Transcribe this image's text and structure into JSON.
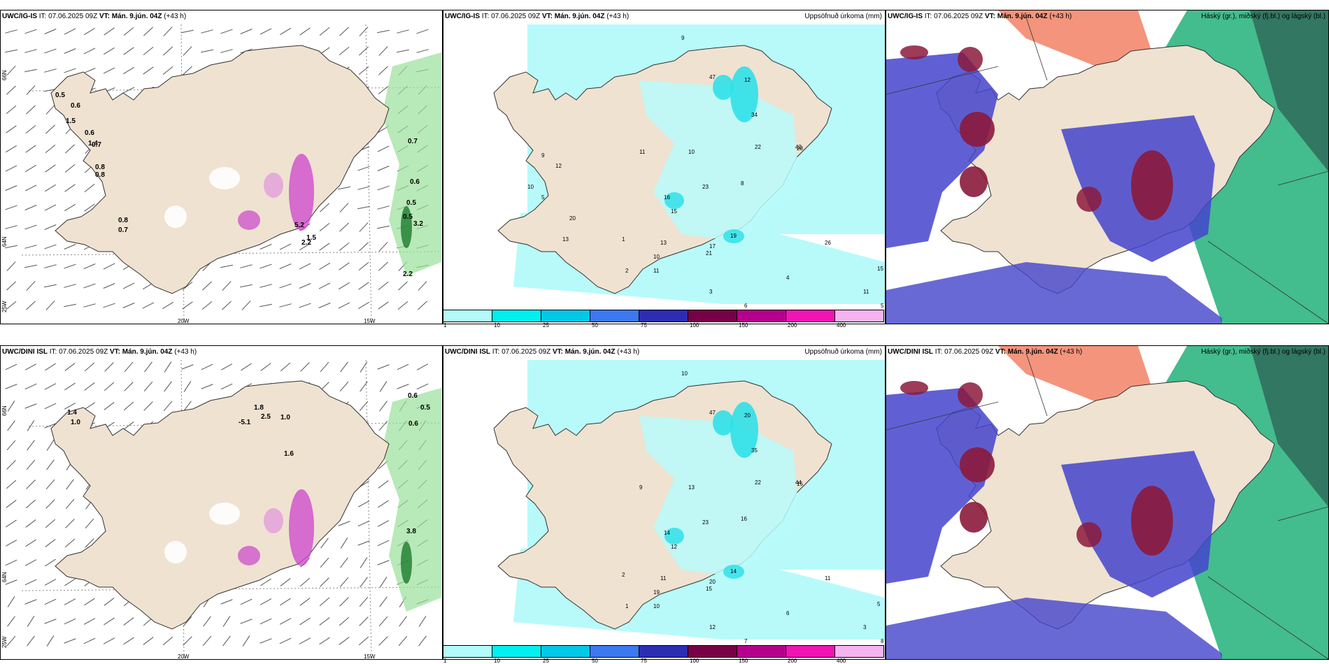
{
  "panels": {
    "top_left": {
      "model": "UWC/IG-IS",
      "it": "IT: 07.06.2025 09Z",
      "vt": "VT: Mán. 9.jún. 04Z",
      "lead": "(+43 h)",
      "right": ""
    },
    "top_mid": {
      "model": "UWC/IG-IS",
      "it": "IT: 07.06.2025 09Z",
      "vt": "VT: Mán. 9.jún. 04Z",
      "lead": "(+43 h)",
      "right": "Uppsöfnuð úrkoma (mm)"
    },
    "top_right": {
      "model": "UWC/IG-IS",
      "it": "IT: 07.06.2025 09Z",
      "vt": "VT: Mán. 9.jún. 04Z",
      "lead": "(+43 h)",
      "right": "Háský (gr.), miðský (fj.bl.) og lágský (bl.)"
    },
    "bot_left": {
      "model": "UWC/DINI ISL",
      "it": "IT: 07.06.2025 09Z",
      "vt": "VT: Mán. 9.jún. 04Z",
      "lead": "(+43 h)",
      "right": ""
    },
    "bot_mid": {
      "model": "UWC/DINI ISL",
      "it": "IT: 07.06.2025 09Z",
      "vt": "VT: Mán. 9.jún. 04Z",
      "lead": "(+43 h)",
      "right": "Uppsöfnuð úrkoma (mm)"
    },
    "bot_right": {
      "model": "UWC/DINI ISL",
      "it": "IT: 07.06.2025 09Z",
      "vt": "VT: Mán. 9.jún. 04Z",
      "lead": "(+43 h)",
      "right": "Háský (gr.), miðský (fj.bl.) og lágský (bl.)"
    }
  },
  "axis_labels": {
    "lon_20w": "20W",
    "lon_15w": "15W",
    "lat_66n": "66N",
    "lat_64n": "64N",
    "lon_25w": "25W"
  },
  "colorbar": {
    "ticks": [
      "1",
      "10",
      "25",
      "50",
      "75",
      "100",
      "150",
      "200",
      "400"
    ],
    "colors": [
      "#b3fbfb",
      "#00f0f0",
      "#00c8e6",
      "#3c78f0",
      "#2d2db4",
      "#780046",
      "#b4008c",
      "#f014b4",
      "#f5b4f0"
    ]
  },
  "colors": {
    "land": "#efe2d1",
    "precip_light": "#b8fafa",
    "precip_med": "#30e0e8",
    "low_cloud": "#4444cc",
    "mid_cloud": "#8b1a3c",
    "high_cloud": "#22b07a",
    "green_precip": "#9ae09a",
    "purple": "#cc44cc"
  },
  "map_values": {
    "top_left": [
      "0.5",
      "0.6",
      "1.5",
      "0.6",
      "0.7",
      "0.8",
      "0.8",
      "0.8",
      "0.7",
      "1.4",
      "0.7",
      "0.6",
      "0.5",
      "0.5",
      "3.2",
      "2.2",
      "5.2",
      "1.5",
      "2.2"
    ],
    "top_mid": [
      "9",
      "12",
      "47",
      "34",
      "22",
      "42",
      "28",
      "10",
      "11",
      "15",
      "8",
      "23",
      "16",
      "13",
      "17",
      "10",
      "11",
      "21",
      "19",
      "26",
      "15",
      "11",
      "5",
      "4",
      "6",
      "3",
      "2",
      "1",
      "13",
      "20",
      "12",
      "9",
      "10",
      "5"
    ],
    "bot_left": [
      "1.4",
      "1.0",
      "0.6",
      "0.5",
      "0.6",
      "3.8",
      "1.8",
      "-5.1",
      "2.5",
      "1.0",
      "1.6"
    ],
    "bot_mid": [
      "10",
      "20",
      "47",
      "35",
      "22",
      "44",
      "15",
      "13",
      "9",
      "12",
      "16",
      "23",
      "14",
      "11",
      "20",
      "19",
      "10",
      "15",
      "14",
      "11",
      "5",
      "3",
      "8",
      "6",
      "7",
      "12",
      "1",
      "2"
    ]
  }
}
